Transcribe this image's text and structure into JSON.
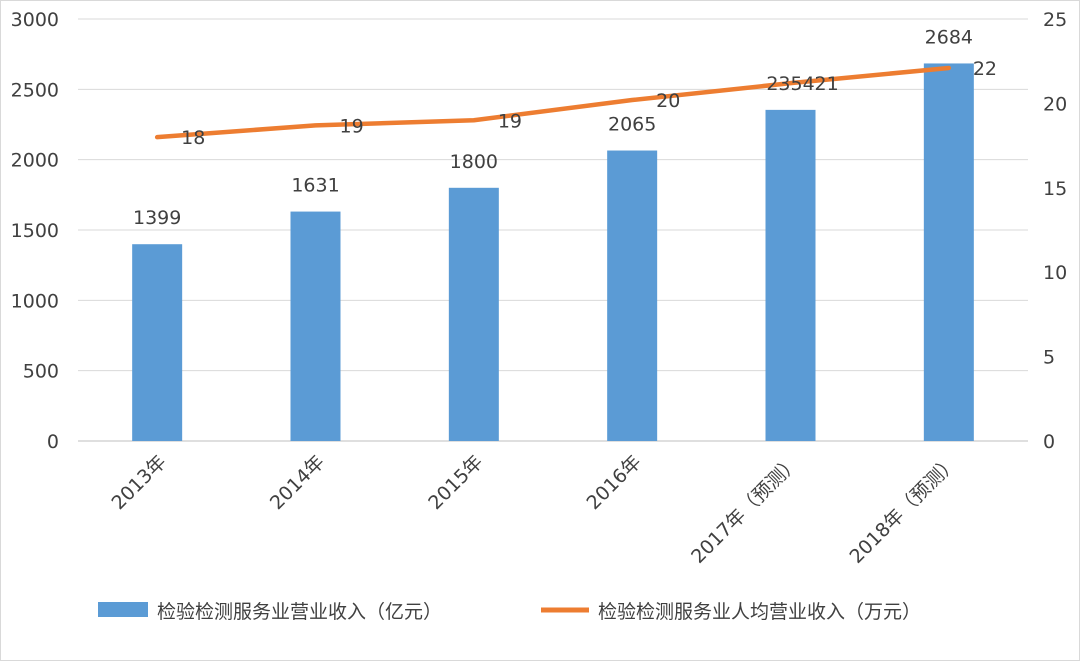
{
  "chart_data": {
    "type": "bar",
    "categories": [
      "2013年",
      "2014年",
      "2015年",
      "2016年",
      "2017年（预测）",
      "2018年（预测）"
    ],
    "series": [
      {
        "name": "检验检测服务业营业收入（亿元）",
        "type": "bar",
        "axis": "left",
        "values": [
          1399,
          1631,
          1800,
          2065,
          2354,
          2684
        ],
        "labels": [
          "1399",
          "1631",
          "1800",
          "2065",
          "2354",
          "2684"
        ],
        "color": "#5b9bd5"
      },
      {
        "name": "检验检测服务业人均营业收入（万元）",
        "type": "line",
        "axis": "right",
        "values": [
          18,
          18.7,
          19,
          20.2,
          21.2,
          22.1
        ],
        "labels": [
          "18",
          "19",
          "19",
          "20",
          "21",
          "22"
        ],
        "color": "#ed7d31"
      }
    ],
    "y_left": {
      "min": 0,
      "max": 3000,
      "ticks": [
        "0",
        "500",
        "1000",
        "1500",
        "2000",
        "2500",
        "3000"
      ]
    },
    "y_right": {
      "min": 0,
      "max": 25,
      "ticks": [
        "0",
        "5",
        "10",
        "15",
        "20",
        "25"
      ]
    },
    "grid": true,
    "legend_position": "bottom"
  }
}
